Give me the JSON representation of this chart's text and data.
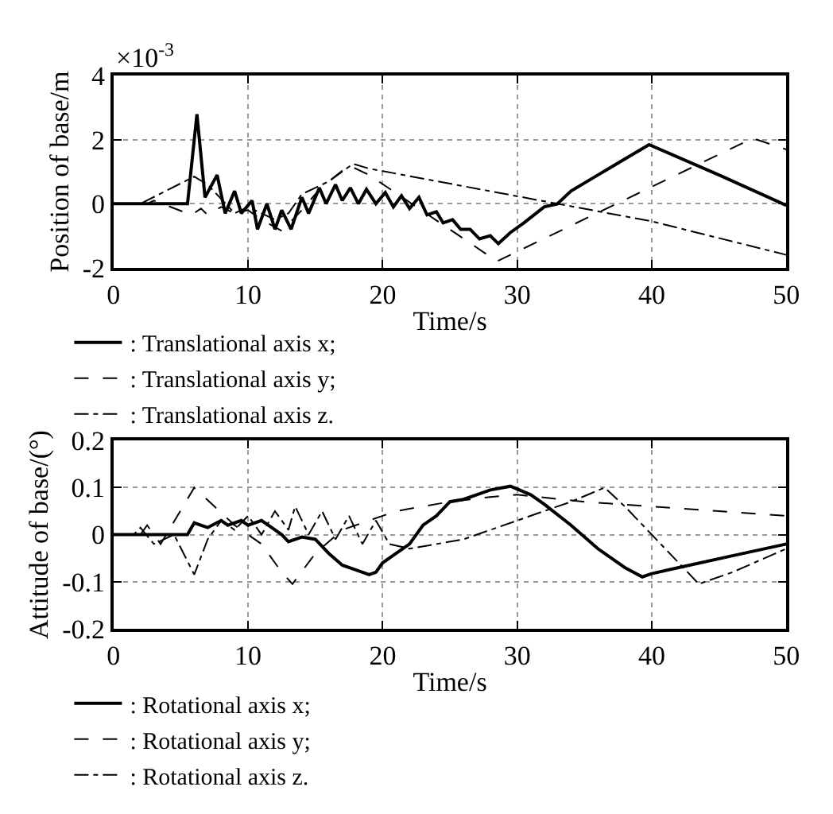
{
  "chart_data": [
    {
      "type": "line",
      "xlabel": "Time/s",
      "ylabel": "Position of base/m",
      "annotations": [
        "×10$^{-3}$"
      ],
      "xlim": [
        0,
        50
      ],
      "ylim": [
        -2,
        4
      ],
      "xticks": [
        0,
        10,
        20,
        30,
        40,
        50
      ],
      "yticks": [
        -2,
        0,
        2,
        4
      ],
      "grid": true,
      "legend": "bottom",
      "series": [
        {
          "name": ": Translational axis x;",
          "color": "#000000",
          "line_style": "solid",
          "x": [
            0,
            5.5,
            6.2,
            6.8,
            7.7,
            8.3,
            9.0,
            9.5,
            10.3,
            10.7,
            11.4,
            12.0,
            12.5,
            13.2,
            14.0,
            14.5,
            15.3,
            15.8,
            16.5,
            17.0,
            17.6,
            18.2,
            18.8,
            19.5,
            20.2,
            20.8,
            21.4,
            22.0,
            22.7,
            23.3,
            24.0,
            24.5,
            25.2,
            25.8,
            26.5,
            27.2,
            28.0,
            28.6,
            29.5,
            30.5,
            32,
            33,
            34,
            36,
            38,
            39.8,
            45,
            50
          ],
          "values": [
            0,
            0,
            2.8,
            0.2,
            0.9,
            -0.3,
            0.4,
            -0.3,
            0.1,
            -0.8,
            0.0,
            -0.8,
            -0.2,
            -0.8,
            0.2,
            -0.3,
            0.5,
            0,
            0.6,
            0.1,
            0.5,
            0.0,
            0.45,
            0,
            0.35,
            -0.1,
            0.25,
            -0.15,
            0.2,
            -0.35,
            -0.25,
            -0.6,
            -0.5,
            -0.8,
            -0.8,
            -1.1,
            -1.0,
            -1.25,
            -0.9,
            -0.6,
            -0.1,
            0.0,
            0.4,
            0.9,
            1.4,
            1.85,
            0.9,
            -0.05
          ]
        },
        {
          "name": ": Translational axis y;",
          "color": "#000000",
          "line_style": "dashed",
          "x": [
            0,
            2.5,
            3,
            5.8,
            6.5,
            7,
            8,
            9,
            10,
            11,
            12.5,
            14,
            15,
            16,
            17.5,
            18.5,
            19,
            28.5,
            47.5,
            50
          ],
          "values": [
            0,
            0,
            0.1,
            -0.35,
            -0.15,
            -0.35,
            -0.1,
            -0.3,
            -0.2,
            -0.5,
            -0.85,
            -0.2,
            0.3,
            0.7,
            1.2,
            1.0,
            0.9,
            -1.8,
            2.05,
            1.7
          ]
        },
        {
          "name": ": Translational axis z.",
          "color": "#000000",
          "line_style": "dashdot",
          "x": [
            0,
            2,
            6,
            7,
            9,
            10,
            12,
            13,
            14,
            16,
            17.8,
            19,
            40,
            50
          ],
          "values": [
            0,
            0,
            0.85,
            0.6,
            -0.3,
            -0.1,
            -0.5,
            -0.3,
            0.3,
            0.7,
            1.25,
            1.1,
            -0.55,
            -1.6
          ]
        }
      ]
    },
    {
      "type": "line",
      "xlabel": "Time/s",
      "ylabel": "Attitude of base/(°)",
      "xlim": [
        0,
        50
      ],
      "ylim": [
        -0.2,
        0.2
      ],
      "xticks": [
        0,
        10,
        20,
        30,
        40,
        50
      ],
      "yticks": [
        -0.2,
        -0.1,
        0,
        0.1,
        0.2
      ],
      "grid": true,
      "legend": "bottom",
      "series": [
        {
          "name": ": Rotational axis x;",
          "color": "#000000",
          "line_style": "solid",
          "x": [
            0,
            5.5,
            6,
            7,
            8,
            8.5,
            9.5,
            10,
            11,
            11.5,
            12.5,
            13,
            14,
            15,
            16,
            17,
            18,
            19,
            19.5,
            20,
            21,
            22,
            23,
            24,
            25,
            26,
            27,
            28,
            29.5,
            31,
            32,
            34,
            36,
            38,
            39.3,
            40,
            42,
            46,
            50
          ],
          "values": [
            0,
            0,
            0.025,
            0.015,
            0.03,
            0.02,
            0.03,
            0.02,
            0.03,
            0.02,
            0.0,
            -0.015,
            -0.005,
            -0.01,
            -0.04,
            -0.065,
            -0.075,
            -0.085,
            -0.08,
            -0.06,
            -0.04,
            -0.02,
            0.02,
            0.04,
            0.07,
            0.075,
            0.085,
            0.095,
            0.103,
            0.085,
            0.065,
            0.02,
            -0.03,
            -0.07,
            -0.09,
            -0.083,
            -0.07,
            -0.045,
            -0.02
          ]
        },
        {
          "name": ": Rotational axis y;",
          "color": "#000000",
          "line_style": "dashed",
          "x": [
            0,
            2,
            2.5,
            3.5,
            6,
            7.5,
            9,
            11,
            12.5,
            13.3,
            15,
            17,
            19,
            21,
            23,
            25,
            28,
            30,
            35,
            40,
            45,
            50
          ],
          "values": [
            0,
            0,
            0.02,
            -0.02,
            0.1,
            0.06,
            0.02,
            -0.02,
            -0.08,
            -0.105,
            -0.04,
            0.01,
            0.03,
            0.05,
            0.06,
            0.07,
            0.08,
            0.085,
            0.07,
            0.06,
            0.05,
            0.04
          ]
        },
        {
          "name": ": Rotational axis z.",
          "color": "#000000",
          "line_style": "dashdot",
          "x": [
            0,
            1.5,
            2,
            3,
            4.5,
            6,
            7,
            8,
            9,
            10,
            11,
            12,
            13,
            13.5,
            14.5,
            15.5,
            16.5,
            17.5,
            18.5,
            19.5,
            20.5,
            22,
            24,
            26,
            28,
            30,
            32,
            34,
            36.5,
            38,
            40,
            43.5,
            46,
            50
          ],
          "values": [
            0,
            0,
            0.015,
            -0.02,
            0.0,
            -0.085,
            -0.01,
            0.03,
            0.01,
            0.04,
            0.0,
            0.05,
            0.01,
            0.06,
            0.0,
            0.05,
            -0.01,
            0.04,
            -0.02,
            0.03,
            -0.02,
            -0.03,
            -0.02,
            -0.01,
            0.01,
            0.03,
            0.05,
            0.07,
            0.1,
            0.06,
            0.0,
            -0.105,
            -0.08,
            -0.03
          ]
        }
      ]
    }
  ]
}
